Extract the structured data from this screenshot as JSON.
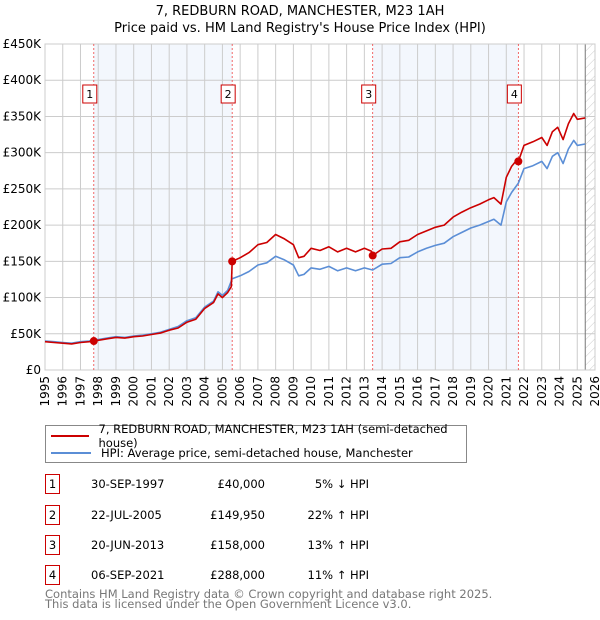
{
  "header": {
    "title_line1": "7, REDBURN ROAD, MANCHESTER, M23 1AH",
    "title_line2": "Price paid vs. HM Land Registry's House Price Index (HPI)"
  },
  "chart_data": {
    "type": "line",
    "title": "7, REDBURN ROAD, MANCHESTER, M23 1AH — Price paid vs. HM Land Registry's House Price Index (HPI)",
    "xlim": [
      1995,
      2026
    ],
    "ylim": [
      0,
      450000
    ],
    "x_ticks": [
      "1995",
      "1996",
      "1997",
      "1998",
      "1999",
      "2000",
      "2001",
      "2002",
      "2003",
      "2004",
      "2005",
      "2006",
      "2007",
      "2008",
      "2009",
      "2010",
      "2011",
      "2012",
      "2013",
      "2014",
      "2015",
      "2016",
      "2017",
      "2018",
      "2019",
      "2020",
      "2021",
      "2022",
      "2023",
      "2024",
      "2025",
      "2026"
    ],
    "y_ticks": [
      {
        "v": 0,
        "label": "£0"
      },
      {
        "v": 50000,
        "label": "£50K"
      },
      {
        "v": 100000,
        "label": "£100K"
      },
      {
        "v": 150000,
        "label": "£150K"
      },
      {
        "v": 200000,
        "label": "£200K"
      },
      {
        "v": 250000,
        "label": "£250K"
      },
      {
        "v": 300000,
        "label": "£300K"
      },
      {
        "v": 350000,
        "label": "£350K"
      },
      {
        "v": 400000,
        "label": "£400K"
      },
      {
        "v": 450000,
        "label": "£450K"
      }
    ],
    "grid": true,
    "forecast_from": 2025.45,
    "shaded_ranges": [
      [
        1997.75,
        2005.55
      ],
      [
        2013.47,
        2021.68
      ]
    ],
    "series": [
      {
        "name": "7, REDBURN ROAD, MANCHESTER, M23 1AH (semi-detached house)",
        "color": "#cc0000",
        "x": [
          1995.0,
          1995.5,
          1996.0,
          1996.5,
          1997.0,
          1997.5,
          1997.75,
          1998.0,
          1998.5,
          1999.0,
          1999.5,
          2000.0,
          2000.5,
          2001.0,
          2001.5,
          2002.0,
          2002.5,
          2003.0,
          2003.5,
          2004.0,
          2004.5,
          2004.75,
          2005.0,
          2005.3,
          2005.5,
          2005.55,
          2006.0,
          2006.5,
          2007.0,
          2007.5,
          2008.0,
          2008.5,
          2009.0,
          2009.3,
          2009.6,
          2010.0,
          2010.5,
          2011.0,
          2011.5,
          2012.0,
          2012.5,
          2013.0,
          2013.4,
          2013.47,
          2014.0,
          2014.5,
          2015.0,
          2015.5,
          2016.0,
          2016.5,
          2017.0,
          2017.5,
          2018.0,
          2018.5,
          2019.0,
          2019.5,
          2020.0,
          2020.3,
          2020.7,
          2021.0,
          2021.3,
          2021.6,
          2021.68,
          2022.0,
          2022.5,
          2023.0,
          2023.3,
          2023.6,
          2023.9,
          2024.2,
          2024.5,
          2024.8,
          2025.0,
          2025.45
        ],
        "y": [
          39000,
          38000,
          37000,
          36000,
          38000,
          39000,
          40000,
          41000,
          43000,
          45000,
          44000,
          46000,
          47000,
          49000,
          51000,
          55000,
          58000,
          66000,
          70000,
          85000,
          93000,
          105000,
          100000,
          107000,
          115000,
          149950,
          155000,
          162000,
          173000,
          176000,
          187000,
          181000,
          173000,
          155000,
          157000,
          168000,
          165000,
          170000,
          163000,
          168000,
          163000,
          168000,
          164000,
          158000,
          167000,
          168000,
          177000,
          179000,
          187000,
          192000,
          197000,
          200000,
          211000,
          218000,
          224000,
          229000,
          235000,
          238000,
          229000,
          266000,
          281000,
          290000,
          288000,
          310000,
          315000,
          321000,
          310000,
          329000,
          335000,
          318000,
          340000,
          354000,
          346000,
          348000
        ]
      },
      {
        "name": "HPI: Average price, semi-detached house, Manchester",
        "color": "#5b8ed6",
        "x": [
          1995.0,
          1995.5,
          1996.0,
          1996.5,
          1997.0,
          1997.5,
          1997.75,
          1998.0,
          1998.5,
          1999.0,
          1999.5,
          2000.0,
          2000.5,
          2001.0,
          2001.5,
          2002.0,
          2002.5,
          2003.0,
          2003.5,
          2004.0,
          2004.5,
          2004.75,
          2005.0,
          2005.3,
          2005.55,
          2006.0,
          2006.5,
          2007.0,
          2007.5,
          2008.0,
          2008.5,
          2009.0,
          2009.3,
          2009.6,
          2010.0,
          2010.5,
          2011.0,
          2011.5,
          2012.0,
          2012.5,
          2013.0,
          2013.47,
          2014.0,
          2014.5,
          2015.0,
          2015.5,
          2016.0,
          2016.5,
          2017.0,
          2017.5,
          2018.0,
          2018.5,
          2019.0,
          2019.5,
          2020.0,
          2020.3,
          2020.7,
          2021.0,
          2021.3,
          2021.68,
          2022.0,
          2022.5,
          2023.0,
          2023.3,
          2023.6,
          2023.9,
          2024.2,
          2024.5,
          2024.8,
          2025.0,
          2025.45
        ],
        "y": [
          40000,
          39000,
          38000,
          37000,
          39000,
          40000,
          42000,
          42000,
          44000,
          46000,
          45000,
          47000,
          48000,
          50000,
          52000,
          56000,
          60000,
          68000,
          72000,
          87000,
          95000,
          108000,
          103000,
          110000,
          126000,
          130000,
          136000,
          145000,
          148000,
          157000,
          152000,
          145000,
          130000,
          132000,
          141000,
          139000,
          143000,
          137000,
          141000,
          137000,
          141000,
          138000,
          146000,
          147000,
          155000,
          156000,
          163000,
          168000,
          172000,
          175000,
          184000,
          190000,
          196000,
          200000,
          205000,
          208000,
          200000,
          232000,
          245000,
          258000,
          278000,
          282000,
          288000,
          278000,
          295000,
          300000,
          285000,
          305000,
          317000,
          310000,
          312000
        ]
      }
    ],
    "sales": [
      {
        "n": "1",
        "x": 1997.75,
        "price": 40000,
        "date": "30-SEP-1997",
        "price_label": "£40,000",
        "hpi_label": "5% ↓ HPI"
      },
      {
        "n": "2",
        "x": 2005.55,
        "price": 149950,
        "date": "22-JUL-2005",
        "price_label": "£149,950",
        "hpi_label": "22% ↑ HPI"
      },
      {
        "n": "3",
        "x": 2013.47,
        "price": 158000,
        "date": "20-JUN-2013",
        "price_label": "£158,000",
        "hpi_label": "13% ↑ HPI"
      },
      {
        "n": "4",
        "x": 2021.68,
        "price": 288000,
        "date": "06-SEP-2021",
        "price_label": "£288,000",
        "hpi_label": "11% ↑ HPI"
      }
    ]
  },
  "legend": {
    "property": "7, REDBURN ROAD, MANCHESTER, M23 1AH (semi-detached house)",
    "hpi": "HPI: Average price, semi-detached house, Manchester"
  },
  "footer": {
    "line1": "Contains HM Land Registry data © Crown copyright and database right 2025.",
    "line2": "This data is licensed under the Open Government Licence v3.0."
  }
}
